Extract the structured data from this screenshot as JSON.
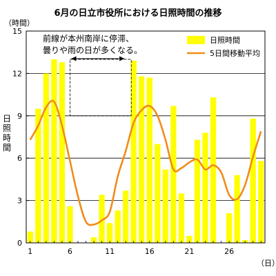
{
  "chart_data": {
    "type": "bar",
    "title": "6月の日立市役所における日照時間の推移",
    "ylabel": "日照時間",
    "yunit": "（時間）",
    "xunit": "（日）",
    "ylim": [
      0,
      15
    ],
    "yticks": [
      0,
      3,
      6,
      9,
      12,
      15
    ],
    "xtick_labels": [
      "1",
      "6",
      "11",
      "16",
      "21",
      "26"
    ],
    "x": [
      1,
      2,
      3,
      4,
      5,
      6,
      7,
      8,
      9,
      10,
      11,
      12,
      13,
      14,
      15,
      16,
      17,
      18,
      19,
      20,
      21,
      22,
      23,
      24,
      25,
      26,
      27,
      28,
      29,
      30
    ],
    "series": [
      {
        "name": "日照時間",
        "type": "bar",
        "color": "#ffff00",
        "values": [
          0.8,
          9.5,
          12.0,
          13.0,
          12.8,
          2.6,
          0.0,
          0.0,
          0.4,
          3.4,
          1.4,
          2.3,
          3.7,
          12.9,
          11.8,
          11.7,
          7.0,
          5.2,
          9.7,
          3.5,
          0.5,
          7.3,
          7.8,
          10.3,
          0.0,
          2.1,
          4.8,
          0.2,
          8.8,
          5.8
        ]
      },
      {
        "name": "5日間移動平均",
        "type": "line",
        "color": "#f08c1a",
        "values": [
          7.3,
          8.3,
          9.6,
          10.0,
          8.3,
          5.8,
          3.3,
          1.5,
          1.3,
          1.6,
          2.2,
          4.7,
          6.5,
          8.5,
          9.4,
          9.7,
          9.0,
          7.3,
          5.2,
          5.3,
          5.7,
          5.9,
          5.2,
          5.5,
          5.0,
          3.4,
          3.1,
          4.1,
          6.1,
          7.9
        ]
      }
    ],
    "legend": "top-right",
    "annotation": {
      "lines": [
        "前線が本州南岸に停滞、",
        "曇りや雨の日が多くなる。"
      ],
      "x_range": [
        6,
        13
      ],
      "box_x": [
        6,
        13.7
      ],
      "box_y": [
        9,
        13
      ]
    }
  }
}
